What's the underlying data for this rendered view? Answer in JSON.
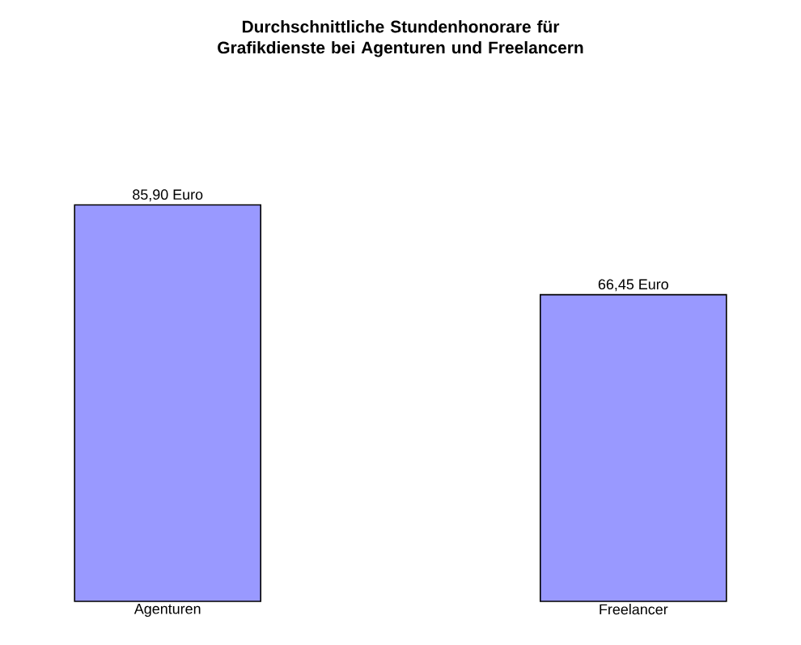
{
  "chart_data": {
    "type": "bar",
    "title": "Durchschnittliche Stundenhonorare für Grafikdienste bei Agenturen und Freelancern",
    "categories": [
      "Agenturen",
      "Freelancer"
    ],
    "values": [
      85.9,
      66.45
    ],
    "value_labels": [
      "85,90 Euro",
      "66,45 Euro"
    ],
    "color": "#9999ff"
  }
}
